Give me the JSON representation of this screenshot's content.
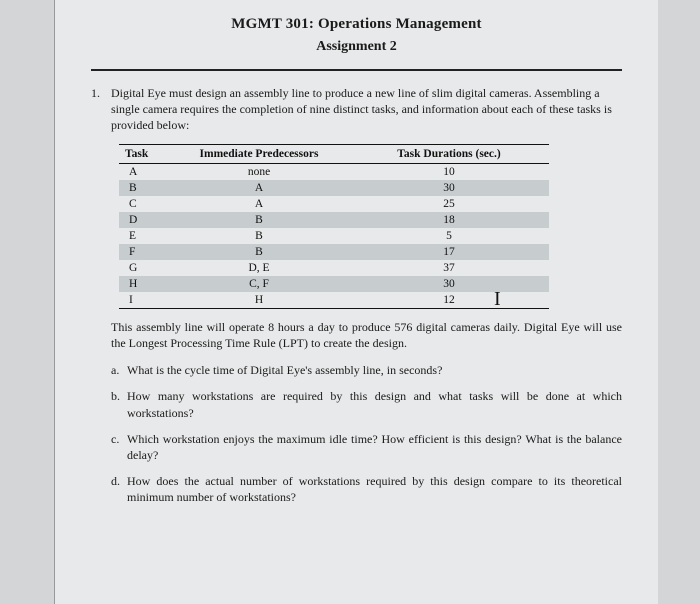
{
  "header": {
    "course": "MGMT 301: Operations Management",
    "assignment": "Assignment 2"
  },
  "question": {
    "number": "1.",
    "intro": "Digital Eye must design an assembly line to produce a new line of slim digital cameras. Assembling a single camera requires the completion of nine distinct tasks, and information about each of these tasks is provided below:"
  },
  "table": {
    "columns": [
      "Task",
      "Immediate Predecessors",
      "Task Durations (sec.)"
    ],
    "rows": [
      {
        "task": "A",
        "pred": "none",
        "dur": "10",
        "shade": false
      },
      {
        "task": "B",
        "pred": "A",
        "dur": "30",
        "shade": true
      },
      {
        "task": "C",
        "pred": "A",
        "dur": "25",
        "shade": false
      },
      {
        "task": "D",
        "pred": "B",
        "dur": "18",
        "shade": true
      },
      {
        "task": "E",
        "pred": "B",
        "dur": "5",
        "shade": false
      },
      {
        "task": "F",
        "pred": "B",
        "dur": "17",
        "shade": true
      },
      {
        "task": "G",
        "pred": "D, E",
        "dur": "37",
        "shade": false
      },
      {
        "task": "H",
        "pred": "C, F",
        "dur": "30",
        "shade": true
      },
      {
        "task": "I",
        "pred": "H",
        "dur": "12",
        "shade": false
      }
    ],
    "shade_color": "#c7cdcf",
    "border_color": "#111111",
    "font_size": 11.5
  },
  "after_text": "This assembly line will operate 8 hours a day to produce 576 digital cameras daily. Digital Eye will use the Longest Processing Time Rule (LPT) to create the design.",
  "subquestions": [
    {
      "letter": "a.",
      "text": "What is the cycle time of Digital Eye's assembly line, in seconds?"
    },
    {
      "letter": "b.",
      "text": "How many workstations are required by this design and what tasks will be done at which workstations?"
    },
    {
      "letter": "c.",
      "text": "Which workstation enjoys the maximum idle time? How efficient is this design? What is the balance delay?"
    },
    {
      "letter": "d.",
      "text": "How does the actual number of workstations required by this design compare to its theoretical minimum number of workstations?"
    }
  ],
  "cursor_glyph": "I",
  "colors": {
    "page_bg": "#e8e9ea",
    "outer_bg": "#d4d5d6",
    "text": "#1a1a1a"
  }
}
